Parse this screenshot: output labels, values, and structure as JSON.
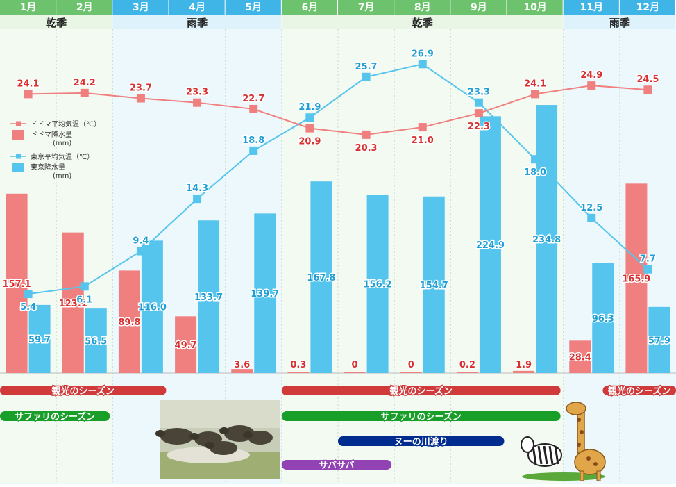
{
  "colors": {
    "dry_header": "#6dc36d",
    "rain_header": "#3fb4e6",
    "dry_band": "#e9f6e6",
    "rain_band": "#ddf2fb",
    "dry_col": "#f3faf1",
    "rain_col": "#edf8fd",
    "dodoma": "#f08080",
    "dodoma_text": "#d83030",
    "tokyo": "#55c5ee",
    "tokyo_text": "#29a6d9",
    "tourism": "#d03a3a",
    "safari": "#1a9e2a",
    "crossing": "#002c8f",
    "dry_spell": "#9142b3"
  },
  "month_headers": [
    "1月",
    "2月",
    "3月",
    "4月",
    "5月",
    "6月",
    "7月",
    "8月",
    "9月",
    "10月",
    "11月",
    "12月"
  ],
  "season_bands": [
    {
      "label": "乾季",
      "type": "dry",
      "from": 0,
      "to": 1
    },
    {
      "label": "雨季",
      "type": "rain",
      "from": 2,
      "to": 4
    },
    {
      "label": "乾季",
      "type": "dry",
      "from": 5,
      "to": 9
    },
    {
      "label": "雨季",
      "type": "rain",
      "from": 10,
      "to": 11
    }
  ],
  "chart_data": {
    "type": "bar+line",
    "categories": [
      "1月",
      "2月",
      "3月",
      "4月",
      "5月",
      "6月",
      "7月",
      "8月",
      "9月",
      "10月",
      "11月",
      "12月"
    ],
    "series": [
      {
        "name": "ドドマ降水量(mm)",
        "kind": "bar",
        "color": "dodoma",
        "values": [
          157.1,
          123.1,
          89.8,
          49.7,
          3.6,
          0.3,
          0,
          0,
          0.2,
          1.9,
          28.4,
          165.9
        ],
        "labels": [
          "157.1",
          "123.1",
          "89.8",
          "49.7",
          "3.6",
          "0.3",
          "0",
          "0",
          "0.2",
          "1.9",
          "28.4",
          "165.9"
        ]
      },
      {
        "name": "東京降水量(mm)",
        "kind": "bar",
        "color": "tokyo",
        "values": [
          59.7,
          56.5,
          116.0,
          133.7,
          139.7,
          167.8,
          156.2,
          154.7,
          224.9,
          234.8,
          96.3,
          57.9
        ],
        "labels": [
          "59.7",
          "56.5",
          "116.0",
          "133.7",
          "139.7",
          "167.8",
          "156.2",
          "154.7",
          "224.9",
          "234.8",
          "96.3",
          "57.9"
        ]
      },
      {
        "name": "ドドマ平均気温(℃)",
        "kind": "line",
        "color": "dodoma",
        "values": [
          24.1,
          24.2,
          23.7,
          23.3,
          22.7,
          20.9,
          20.3,
          21.0,
          22.3,
          24.1,
          24.9,
          24.5
        ],
        "labels": [
          "24.1",
          "24.2",
          "23.7",
          "23.3",
          "22.7",
          "20.9",
          "20.3",
          "21.0",
          "22.3",
          "24.1",
          "24.9",
          "24.5"
        ]
      },
      {
        "name": "東京平均気温(℃)",
        "kind": "line",
        "color": "tokyo",
        "values": [
          5.4,
          6.1,
          9.4,
          14.3,
          18.8,
          21.9,
          25.7,
          26.9,
          23.3,
          18.0,
          12.5,
          7.7
        ],
        "labels": [
          "5.4",
          "6.1",
          "9.4",
          "14.3",
          "18.8",
          "21.9",
          "25.7",
          "26.9",
          "23.3",
          "18.0",
          "12.5",
          "7.7"
        ]
      }
    ],
    "ylim_precip": [
      0,
      275
    ],
    "ylim_temp": [
      0,
      34
    ],
    "legend": [
      {
        "label": "ドドマ平均気温（℃）",
        "series": "ドドマ平均気温(℃)",
        "kind": "line"
      },
      {
        "label": "ドドマ降水量",
        "sub": "(mm)",
        "series": "ドドマ降水量(mm)",
        "kind": "bar"
      },
      {
        "label": "東京平均気温（℃）",
        "series": "東京平均気温(℃)",
        "kind": "line"
      },
      {
        "label": "東京降水量",
        "sub": "(mm)",
        "series": "東京降水量(mm)",
        "kind": "bar"
      }
    ],
    "legend_position": "left",
    "grid": false
  },
  "season_bars": [
    {
      "label": "観光のシーズン",
      "color": "tourism",
      "from": 0,
      "to": 2.95,
      "row": 0
    },
    {
      "label": "観光のシーズン",
      "color": "tourism",
      "from": 5,
      "to": 9.95,
      "row": 0
    },
    {
      "label": "観光のシーズン",
      "color": "tourism",
      "from": 10.7,
      "to": 12,
      "row": 0
    },
    {
      "label": "サファリのシーズン",
      "color": "safari",
      "from": 0,
      "to": 1.95,
      "row": 1
    },
    {
      "label": "サファリのシーズン",
      "color": "safari",
      "from": 5,
      "to": 9.95,
      "row": 1
    },
    {
      "label": "ヌーの川渡り",
      "color": "crossing",
      "from": 6,
      "to": 8.95,
      "row": 2
    },
    {
      "label": "サバサバ",
      "color": "dry_spell",
      "from": 5,
      "to": 6.95,
      "row": 3
    }
  ]
}
